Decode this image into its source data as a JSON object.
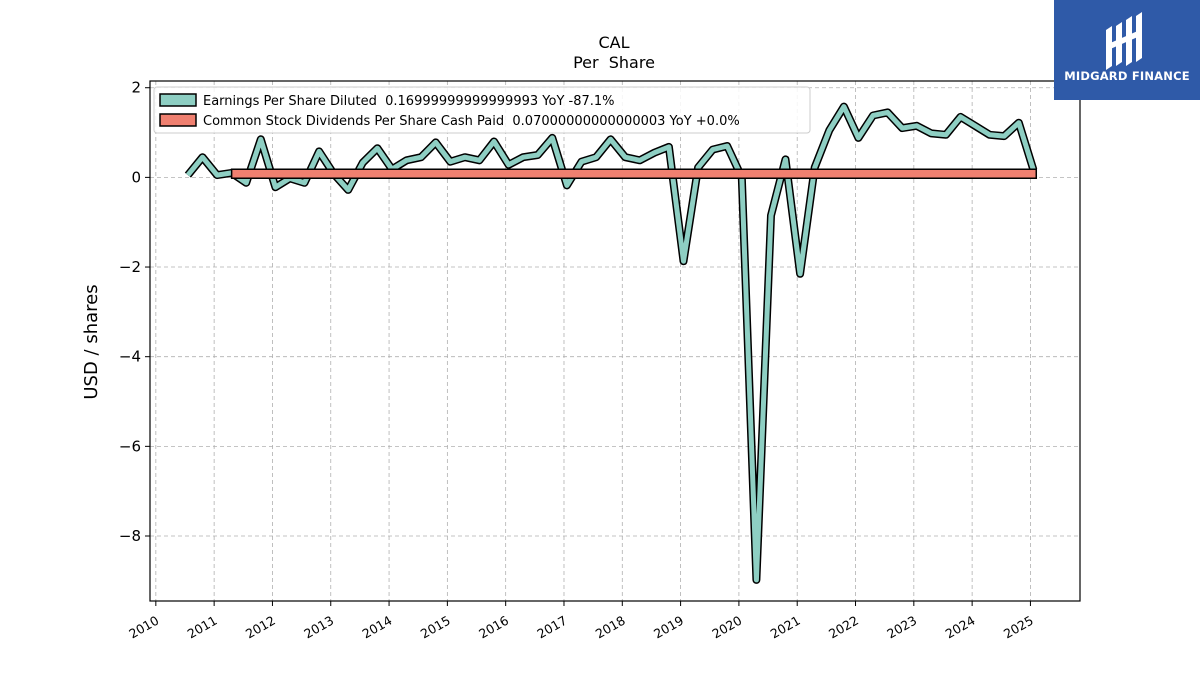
{
  "chart_data": {
    "type": "line",
    "title": "CAL",
    "subtitle": "Per  Share",
    "ylabel": "USD / shares",
    "xlabel": "",
    "ylim": [
      -9.45,
      2.15
    ],
    "xlim": [
      2009.9,
      2025.85
    ],
    "yticks": [
      2,
      0,
      -2,
      -4,
      -6,
      -8
    ],
    "ytick_labels": [
      "2",
      "0",
      "−2",
      "−4",
      "−6",
      "−8"
    ],
    "xticks": [
      2010,
      2011,
      2012,
      2013,
      2014,
      2015,
      2016,
      2017,
      2018,
      2019,
      2020,
      2021,
      2022,
      2023,
      2024,
      2025
    ],
    "xtick_labels": [
      "2010",
      "2011",
      "2012",
      "2013",
      "2014",
      "2015",
      "2016",
      "2017",
      "2018",
      "2019",
      "2020",
      "2021",
      "2022",
      "2023",
      "2024",
      "2025"
    ],
    "grid": true,
    "legend_position": "top-left",
    "series": [
      {
        "name": "Earnings Per Share Diluted",
        "legend_label": "Earnings Per Share Diluted  0.16999999999999993 YoY -87.1%",
        "color": "#8ecfc3",
        "x": [
          2010.55,
          2010.8,
          2011.05,
          2011.3,
          2011.55,
          2011.8,
          2012.05,
          2012.3,
          2012.55,
          2012.8,
          2013.05,
          2013.3,
          2013.55,
          2013.8,
          2014.05,
          2014.3,
          2014.55,
          2014.8,
          2015.05,
          2015.3,
          2015.55,
          2015.8,
          2016.05,
          2016.3,
          2016.55,
          2016.8,
          2017.05,
          2017.3,
          2017.55,
          2017.8,
          2018.05,
          2018.3,
          2018.55,
          2018.8,
          2019.05,
          2019.3,
          2019.55,
          2019.8,
          2020.05,
          2020.3,
          2020.55,
          2020.8,
          2021.05,
          2021.3,
          2021.55,
          2021.8,
          2022.05,
          2022.3,
          2022.55,
          2022.8,
          2023.05,
          2023.3,
          2023.55,
          2023.8,
          2024.05,
          2024.3,
          2024.55,
          2024.8,
          2025.05
        ],
        "values": [
          0.05,
          0.45,
          0.05,
          0.1,
          -0.12,
          0.85,
          -0.22,
          -0.02,
          -0.12,
          0.58,
          0.08,
          -0.28,
          0.33,
          0.65,
          0.18,
          0.38,
          0.45,
          0.78,
          0.35,
          0.45,
          0.38,
          0.8,
          0.28,
          0.45,
          0.5,
          0.88,
          -0.18,
          0.35,
          0.45,
          0.85,
          0.45,
          0.38,
          0.55,
          0.68,
          -1.87,
          0.22,
          0.62,
          0.7,
          0.0,
          -8.98,
          -0.85,
          0.4,
          -2.15,
          0.22,
          1.05,
          1.58,
          0.88,
          1.38,
          1.45,
          1.1,
          1.15,
          0.98,
          0.95,
          1.35,
          1.15,
          0.95,
          0.92,
          1.22,
          0.17
        ]
      },
      {
        "name": "Common Stock Dividends Per Share Cash Paid",
        "legend_label": "Common Stock Dividends Per Share Cash Paid  0.07000000000000003 YoY +0.0%",
        "color": "#f08070",
        "x": [
          2011.3,
          2025.1
        ],
        "values": [
          0.07,
          0.07
        ]
      }
    ]
  },
  "logo": {
    "text": "MIDGARD FINANCE",
    "background": "#2f5aa8"
  }
}
